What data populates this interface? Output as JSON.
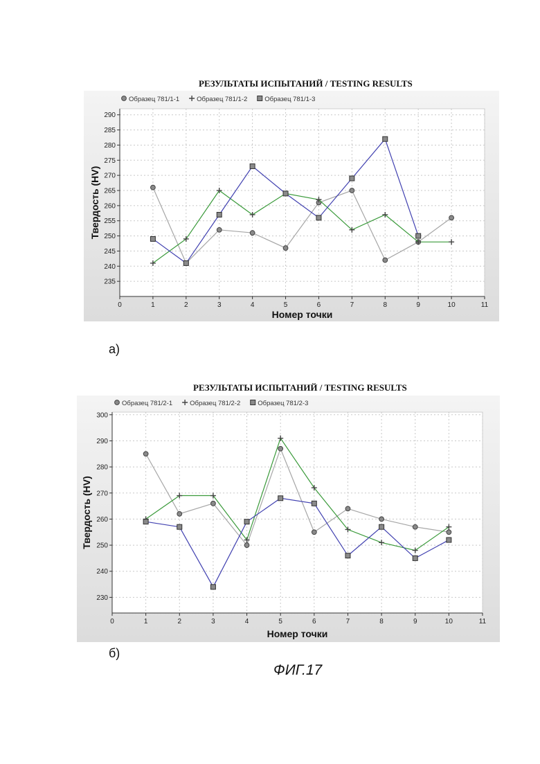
{
  "figure_caption": "ФИГ.17",
  "chart_data": [
    {
      "panel_label": "а)",
      "type": "line",
      "title": "РЕЗУЛЬТАТЫ ИСПЫТАНИЙ / TESTING RESULTS",
      "xlabel": "Номер точки",
      "ylabel": "Твердость (HV)",
      "xlim": [
        0,
        11
      ],
      "ylim": [
        230,
        292
      ],
      "xticks": [
        0,
        1,
        2,
        3,
        4,
        5,
        6,
        7,
        8,
        9,
        10,
        11
      ],
      "yticks": [
        235,
        240,
        245,
        250,
        255,
        260,
        265,
        270,
        275,
        280,
        285,
        290
      ],
      "grid": true,
      "legend_position": "top-left",
      "x": [
        1,
        2,
        3,
        4,
        5,
        6,
        7,
        8,
        9,
        10
      ],
      "series": [
        {
          "name": "Образец 781/1-1",
          "marker": "circle",
          "color": "#a6a6a6",
          "values": [
            266,
            241,
            252,
            251,
            246,
            261,
            265,
            242,
            248,
            256
          ]
        },
        {
          "name": "Образец 781/1-2",
          "marker": "plus",
          "color": "#3a9a3a",
          "values": [
            241,
            249,
            265,
            257,
            264,
            262,
            252,
            257,
            248,
            248
          ]
        },
        {
          "name": "Образец 781/1-3",
          "marker": "square",
          "color": "#4040b0",
          "values": [
            249,
            241,
            257,
            273,
            264,
            256,
            269,
            282,
            250,
            null
          ]
        }
      ]
    },
    {
      "panel_label": "б)",
      "type": "line",
      "title": "РЕЗУЛЬТАТЫ ИСПЫТАНИЙ / TESTING RESULTS",
      "xlabel": "Номер точки",
      "ylabel": "Твердость (HV)",
      "xlim": [
        0,
        11
      ],
      "ylim": [
        224,
        301
      ],
      "xticks": [
        0,
        1,
        2,
        3,
        4,
        5,
        6,
        7,
        8,
        9,
        10,
        11
      ],
      "yticks": [
        230,
        240,
        250,
        260,
        270,
        280,
        290,
        300
      ],
      "grid": true,
      "legend_position": "top-left",
      "x": [
        1,
        2,
        3,
        4,
        5,
        6,
        7,
        8,
        9,
        10
      ],
      "series": [
        {
          "name": "Образец 781/2-1",
          "marker": "circle",
          "color": "#a6a6a6",
          "values": [
            285,
            262,
            266,
            250,
            287,
            255,
            264,
            260,
            257,
            255
          ]
        },
        {
          "name": "Образец 781/2-2",
          "marker": "plus",
          "color": "#3a9a3a",
          "values": [
            260,
            269,
            269,
            252,
            291,
            272,
            256,
            251,
            248,
            257
          ]
        },
        {
          "name": "Образец 781/2-3",
          "marker": "square",
          "color": "#4040b0",
          "values": [
            259,
            257,
            234,
            259,
            268,
            266,
            246,
            257,
            245,
            252
          ]
        }
      ]
    }
  ]
}
